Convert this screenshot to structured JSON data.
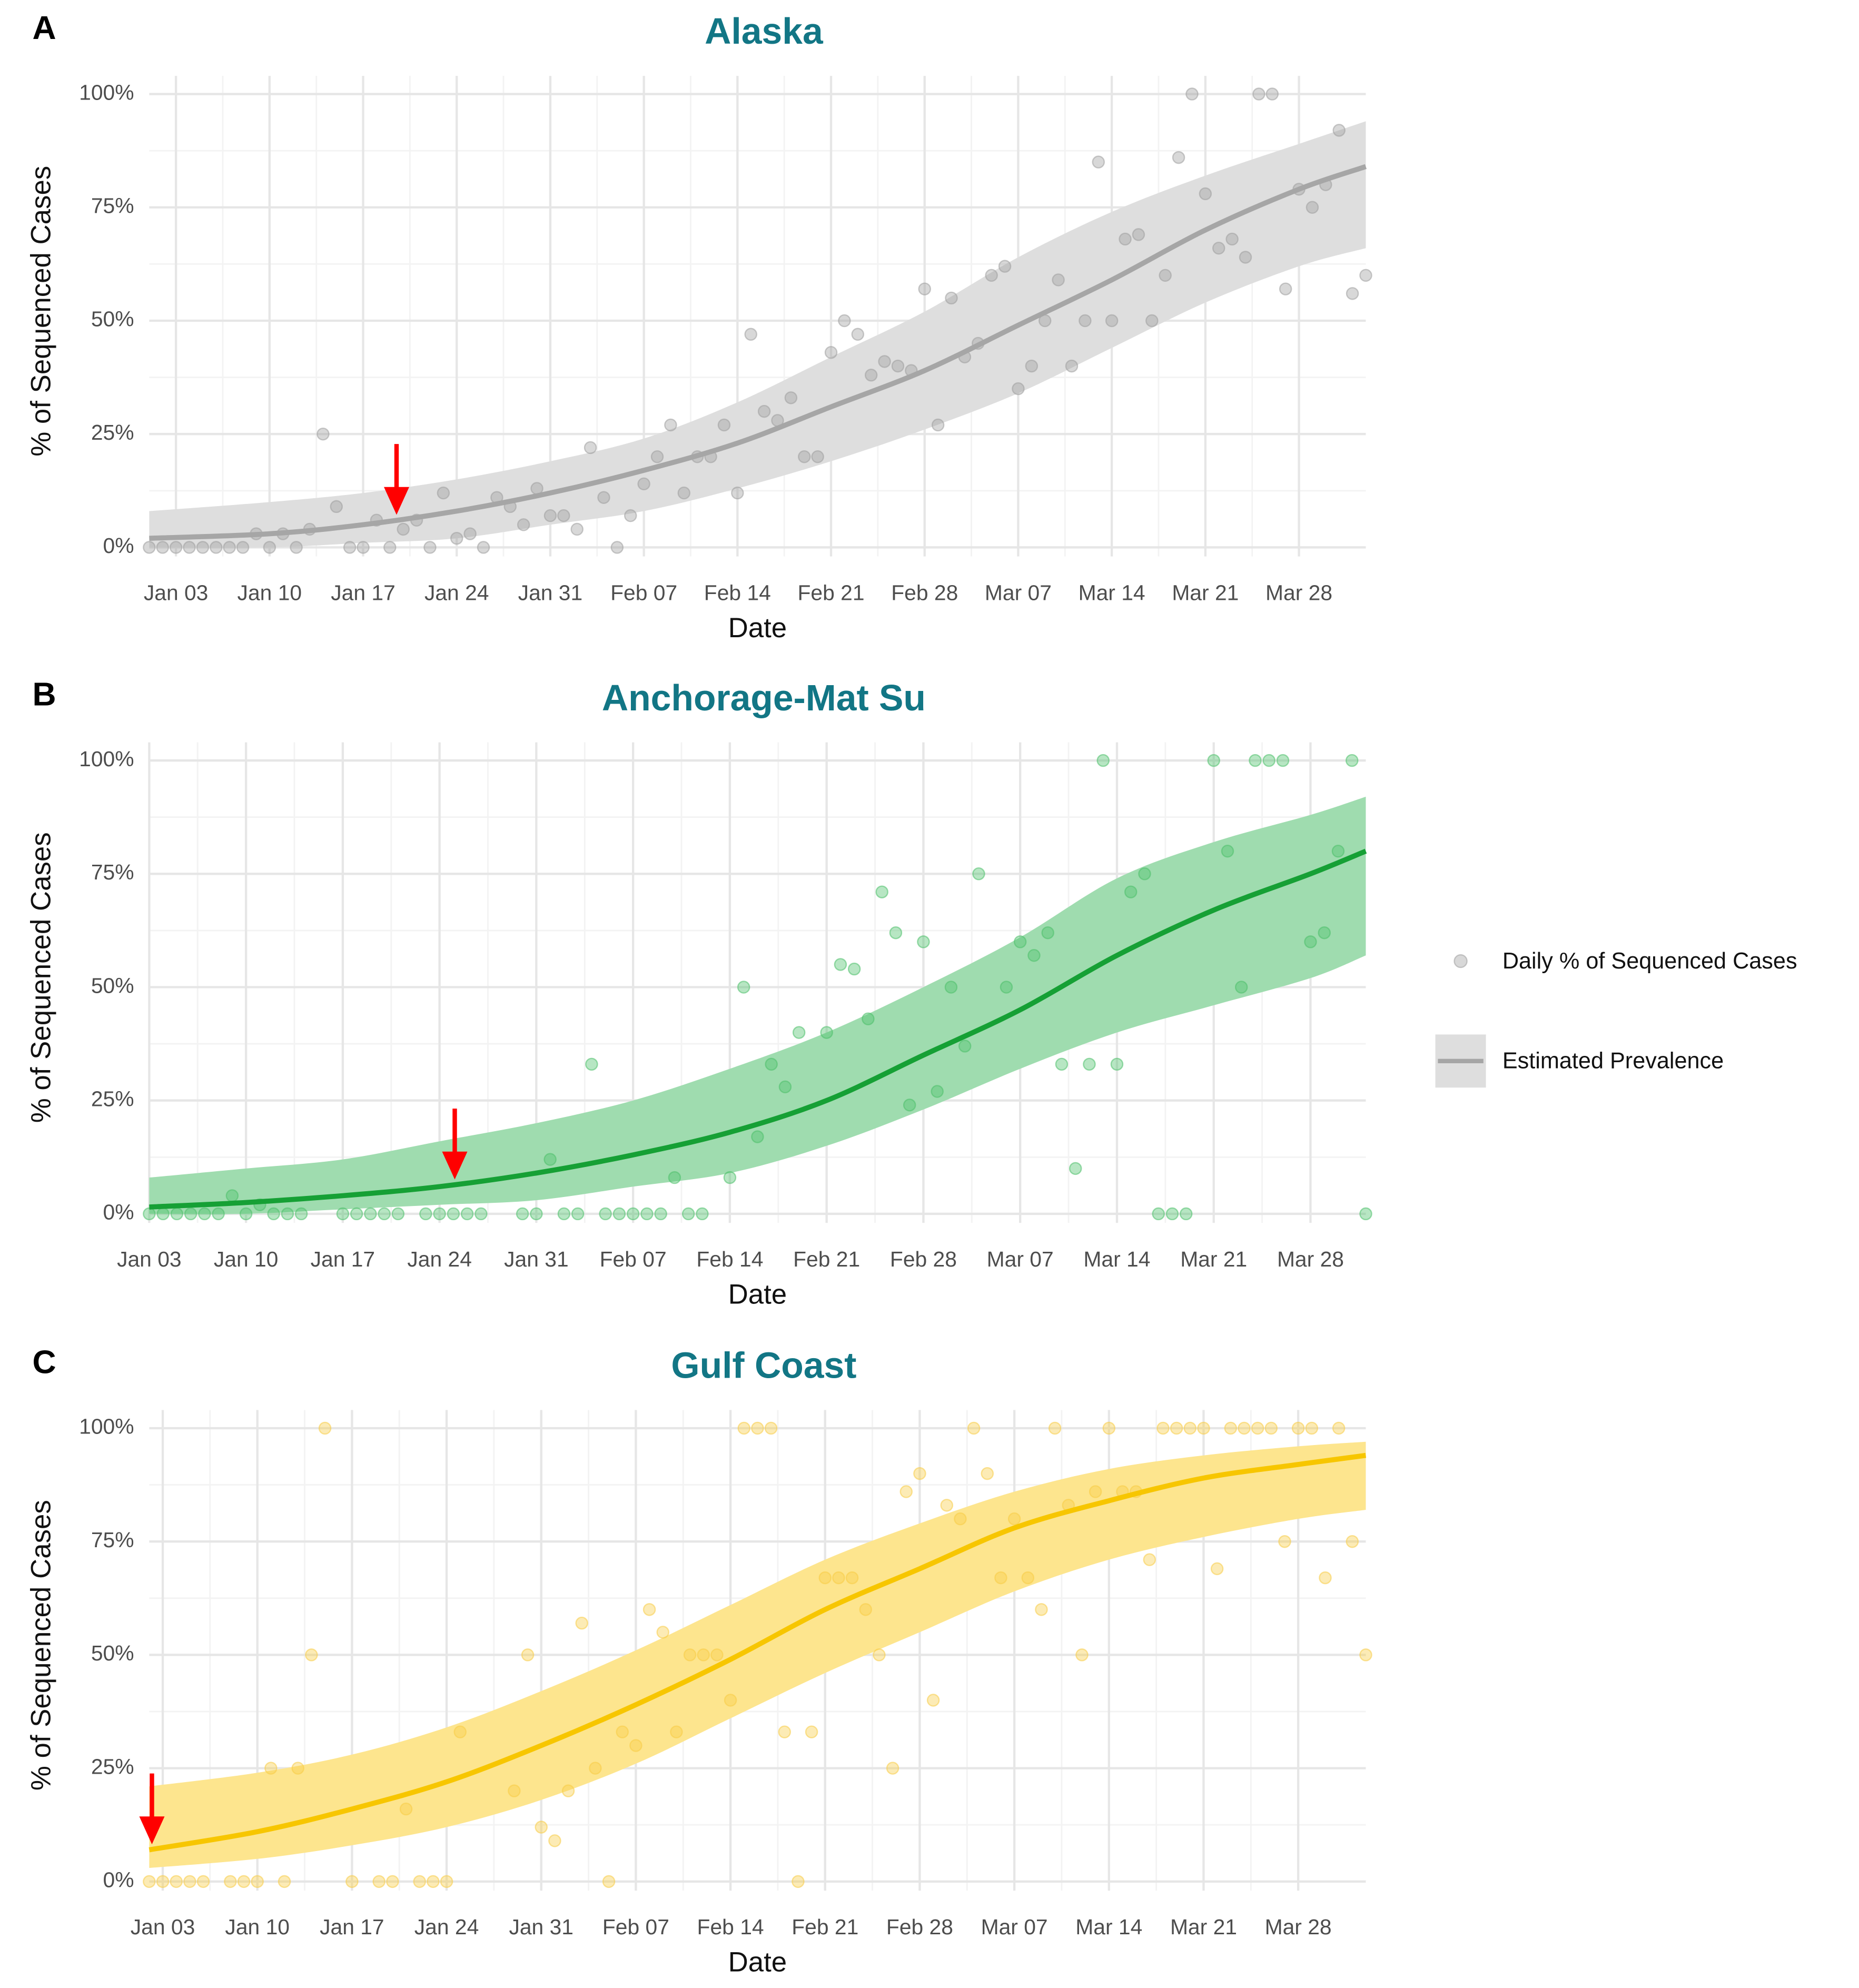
{
  "chart_data": [
    {
      "type": "scatter",
      "panel": "A",
      "title": "Alaska",
      "xlabel": "Date",
      "ylabel": "% of Sequenced Cases",
      "xlim": [
        1,
        92
      ],
      "ylim": [
        -2,
        104
      ],
      "grid": true,
      "legend": "right",
      "xticks": [
        {
          "value": 3,
          "label": "Jan 03"
        },
        {
          "value": 10,
          "label": "Jan 10"
        },
        {
          "value": 17,
          "label": "Jan 17"
        },
        {
          "value": 24,
          "label": "Jan 24"
        },
        {
          "value": 31,
          "label": "Jan 31"
        },
        {
          "value": 38,
          "label": "Feb 07"
        },
        {
          "value": 45,
          "label": "Feb 14"
        },
        {
          "value": 52,
          "label": "Feb 21"
        },
        {
          "value": 59,
          "label": "Feb 28"
        },
        {
          "value": 66,
          "label": "Mar 07"
        },
        {
          "value": 73,
          "label": "Mar 14"
        },
        {
          "value": 80,
          "label": "Mar 21"
        },
        {
          "value": 87,
          "label": "Mar 28"
        }
      ],
      "yticks": [
        {
          "value": 0,
          "label": "0%"
        },
        {
          "value": 25,
          "label": "25%"
        },
        {
          "value": 50,
          "label": "50%"
        },
        {
          "value": 75,
          "label": "75%"
        },
        {
          "value": 100,
          "label": "100%"
        }
      ],
      "series": [
        {
          "name": "Daily % of Sequenced Cases",
          "color": "#9e9e9e",
          "x": [
            1,
            2,
            3,
            4,
            5,
            6,
            7,
            8,
            9,
            10,
            11,
            12,
            13,
            14,
            15,
            16,
            17,
            18,
            19,
            20,
            21,
            22,
            23,
            24,
            25,
            26,
            27,
            28,
            29,
            30,
            31,
            32,
            33,
            34,
            35,
            36,
            37,
            38,
            39,
            40,
            41,
            42,
            43,
            44,
            45,
            46,
            47,
            48,
            49,
            50,
            51,
            52,
            53,
            54,
            55,
            56,
            57,
            58,
            59,
            60,
            61,
            62,
            63,
            64,
            65,
            66,
            67,
            68,
            69,
            70,
            71,
            72,
            73,
            74,
            75,
            76,
            77,
            78,
            79,
            80,
            81,
            82,
            83,
            84,
            85,
            86,
            87,
            88,
            89,
            90,
            91,
            92
          ],
          "values": [
            0,
            0,
            0,
            0,
            0,
            0,
            0,
            0,
            3,
            0,
            3,
            0,
            4,
            25,
            9,
            0,
            0,
            6,
            0,
            4,
            6,
            0,
            12,
            2,
            3,
            0,
            11,
            9,
            5,
            13,
            7,
            7,
            4,
            22,
            11,
            0,
            7,
            14,
            20,
            27,
            12,
            20,
            20,
            27,
            12,
            47,
            30,
            28,
            33,
            20,
            20,
            43,
            50,
            47,
            38,
            41,
            40,
            39,
            57,
            27,
            55,
            42,
            45,
            60,
            62,
            35,
            40,
            50,
            59,
            40,
            50,
            85,
            50,
            68,
            69,
            50,
            60,
            86,
            100,
            78,
            66,
            68,
            64,
            100,
            100,
            57,
            79,
            75,
            80,
            92,
            56,
            60
          ]
        }
      ],
      "fit": {
        "name": "Estimated Prevalence",
        "color": "#a6a6a6",
        "band_color": "#dedede",
        "x": [
          1,
          10,
          17,
          24,
          31,
          38,
          45,
          52,
          59,
          66,
          73,
          80,
          87,
          92
        ],
        "values": [
          2,
          3,
          5,
          8,
          12,
          17,
          23,
          31,
          39,
          49,
          59,
          70,
          79,
          84
        ],
        "lower": [
          0,
          0,
          1,
          2,
          5,
          8,
          13,
          19,
          26,
          34,
          44,
          54,
          62,
          66
        ],
        "upper": [
          8,
          10,
          12,
          15,
          19,
          24,
          32,
          42,
          52,
          64,
          74,
          82,
          89,
          94
        ]
      },
      "arrow": {
        "x": 19.5,
        "color": "#ff0000"
      }
    },
    {
      "type": "scatter",
      "panel": "B",
      "title": "Anchorage-Mat Su",
      "xlabel": "Date",
      "ylabel": "% of Sequenced Cases",
      "xlim": [
        3,
        91
      ],
      "ylim": [
        -2,
        104
      ],
      "grid": true,
      "xticks": [
        {
          "value": 3,
          "label": "Jan 03"
        },
        {
          "value": 10,
          "label": "Jan 10"
        },
        {
          "value": 17,
          "label": "Jan 17"
        },
        {
          "value": 24,
          "label": "Jan 24"
        },
        {
          "value": 31,
          "label": "Jan 31"
        },
        {
          "value": 38,
          "label": "Feb 07"
        },
        {
          "value": 45,
          "label": "Feb 14"
        },
        {
          "value": 52,
          "label": "Feb 21"
        },
        {
          "value": 59,
          "label": "Feb 28"
        },
        {
          "value": 66,
          "label": "Mar 07"
        },
        {
          "value": 73,
          "label": "Mar 14"
        },
        {
          "value": 80,
          "label": "Mar 21"
        },
        {
          "value": 87,
          "label": "Mar 28"
        }
      ],
      "yticks": [
        {
          "value": 0,
          "label": "0%"
        },
        {
          "value": 25,
          "label": "25%"
        },
        {
          "value": 50,
          "label": "50%"
        },
        {
          "value": 75,
          "label": "75%"
        },
        {
          "value": 100,
          "label": "100%"
        }
      ],
      "series": [
        {
          "color": "#4cc06a",
          "x": [
            3,
            4,
            5,
            6,
            7,
            8,
            9,
            10,
            11,
            12,
            13,
            14,
            17,
            18,
            19,
            20,
            21,
            23,
            24,
            25,
            26,
            27,
            30,
            31,
            32,
            33,
            34,
            35,
            36,
            37,
            38,
            39,
            40,
            41,
            42,
            43,
            45,
            46,
            47,
            48,
            49,
            50,
            52,
            53,
            54,
            55,
            56,
            57,
            58,
            59,
            60,
            61,
            62,
            63,
            65,
            66,
            67,
            68,
            69,
            70,
            71,
            72,
            73,
            74,
            75,
            76,
            77,
            78,
            80,
            81,
            82,
            83,
            84,
            85,
            87,
            88,
            89,
            90,
            91
          ],
          "values": [
            0,
            0,
            0,
            0,
            0,
            0,
            4,
            0,
            2,
            0,
            0,
            0,
            0,
            0,
            0,
            0,
            0,
            0,
            0,
            0,
            0,
            0,
            0,
            0,
            12,
            0,
            0,
            33,
            0,
            0,
            0,
            0,
            0,
            8,
            0,
            0,
            8,
            50,
            17,
            33,
            28,
            40,
            40,
            55,
            54,
            43,
            71,
            62,
            24,
            60,
            27,
            50,
            37,
            75,
            50,
            60,
            57,
            62,
            33,
            10,
            33,
            100,
            33,
            71,
            75,
            0,
            0,
            0,
            100,
            80,
            50,
            100,
            100,
            100,
            60,
            62,
            80,
            100,
            0
          ]
        }
      ],
      "fit": {
        "color": "#16a035",
        "band_color": "#9fdcaf",
        "x": [
          3,
          10,
          17,
          24,
          31,
          38,
          45,
          52,
          59,
          66,
          73,
          80,
          87,
          91
        ],
        "values": [
          1.5,
          2.5,
          4,
          6,
          9,
          13,
          18,
          25,
          35,
          45,
          57,
          67,
          75,
          80
        ],
        "lower": [
          0,
          0,
          1,
          2,
          3,
          6,
          9,
          15,
          23,
          32,
          40,
          46,
          52,
          57
        ],
        "upper": [
          8,
          10,
          12,
          16,
          20,
          25,
          32,
          40,
          50,
          61,
          74,
          82,
          88,
          92
        ]
      },
      "arrow": {
        "x": 25.1,
        "color": "#ff0000"
      }
    },
    {
      "type": "scatter",
      "panel": "C",
      "title": "Gulf Coast",
      "xlabel": "Date",
      "ylabel": "% of Sequenced Cases",
      "xlim": [
        2,
        92
      ],
      "ylim": [
        -2,
        104
      ],
      "grid": true,
      "xticks": [
        {
          "value": 3,
          "label": "Jan 03"
        },
        {
          "value": 10,
          "label": "Jan 10"
        },
        {
          "value": 17,
          "label": "Jan 17"
        },
        {
          "value": 24,
          "label": "Jan 24"
        },
        {
          "value": 31,
          "label": "Jan 31"
        },
        {
          "value": 38,
          "label": "Feb 07"
        },
        {
          "value": 45,
          "label": "Feb 14"
        },
        {
          "value": 52,
          "label": "Feb 21"
        },
        {
          "value": 59,
          "label": "Feb 28"
        },
        {
          "value": 66,
          "label": "Mar 07"
        },
        {
          "value": 73,
          "label": "Mar 14"
        },
        {
          "value": 80,
          "label": "Mar 21"
        },
        {
          "value": 87,
          "label": "Mar 28"
        }
      ],
      "yticks": [
        {
          "value": 0,
          "label": "0%"
        },
        {
          "value": 25,
          "label": "25%"
        },
        {
          "value": 50,
          "label": "50%"
        },
        {
          "value": 75,
          "label": "75%"
        },
        {
          "value": 100,
          "label": "100%"
        }
      ],
      "series": [
        {
          "color": "#f7cc45",
          "x": [
            2,
            3,
            4,
            5,
            6,
            8,
            9,
            10,
            11,
            12,
            13,
            14,
            15,
            17,
            19,
            20,
            21,
            22,
            23,
            24,
            25,
            29,
            30,
            31,
            32,
            33,
            34,
            35,
            36,
            37,
            38,
            39,
            40,
            41,
            42,
            43,
            44,
            45,
            46,
            47,
            48,
            49,
            50,
            51,
            52,
            53,
            54,
            55,
            56,
            57,
            58,
            59,
            60,
            61,
            62,
            63,
            64,
            65,
            66,
            67,
            68,
            69,
            70,
            71,
            72,
            73,
            74,
            75,
            76,
            77,
            78,
            79,
            80,
            81,
            82,
            83,
            84,
            85,
            86,
            87,
            88,
            89,
            90,
            91,
            92
          ],
          "values": [
            0,
            0,
            0,
            0,
            0,
            0,
            0,
            0,
            25,
            0,
            25,
            50,
            100,
            0,
            0,
            0,
            16,
            0,
            0,
            0,
            33,
            20,
            50,
            12,
            9,
            20,
            57,
            25,
            0,
            33,
            30,
            60,
            55,
            33,
            50,
            50,
            50,
            40,
            100,
            100,
            100,
            33,
            0,
            33,
            67,
            67,
            67,
            60,
            50,
            25,
            86,
            90,
            40,
            83,
            80,
            100,
            90,
            67,
            80,
            67,
            60,
            100,
            83,
            50,
            86,
            100,
            86,
            86,
            71,
            100,
            100,
            100,
            100,
            69,
            100,
            100,
            100,
            100,
            75,
            100,
            100,
            67,
            100,
            75,
            50
          ]
        }
      ],
      "fit": {
        "color": "#f7c600",
        "band_color": "#fde58e",
        "x": [
          2,
          10,
          17,
          24,
          31,
          38,
          45,
          52,
          59,
          66,
          73,
          80,
          87,
          92
        ],
        "values": [
          7,
          11,
          16,
          22,
          30,
          39,
          49,
          60,
          69,
          78,
          84,
          89,
          92,
          94
        ],
        "lower": [
          3,
          5,
          8,
          12,
          18,
          26,
          36,
          46,
          55,
          64,
          71,
          76,
          80,
          82
        ],
        "upper": [
          21,
          24,
          28,
          34,
          42,
          51,
          61,
          71,
          79,
          86,
          91,
          94,
          96,
          97
        ]
      },
      "arrow": {
        "x": 2.2,
        "color": "#ff0000"
      }
    }
  ]
}
